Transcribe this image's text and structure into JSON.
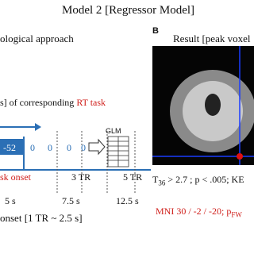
{
  "header": {
    "title": "Model 2 [Regressor Model]"
  },
  "panel_a": {
    "heading": "ological approach",
    "caption_prefix": "s] of corresponding",
    "caption_highlight": "RT task",
    "glm_label": "GLM",
    "cells": [
      "-52",
      "0",
      "0",
      "0",
      "0"
    ],
    "timeline_labels": [
      "sk onset",
      "3 TR",
      "5 TR"
    ],
    "time_labels": [
      "5 s",
      "7.5 s",
      "12.5 s"
    ],
    "axis_label": "onset [1 TR ~ 2.5 s]"
  },
  "panel_b": {
    "letter": "B",
    "heading": "Result [peak voxel",
    "stat_line": {
      "symbol": "T",
      "subscript": "36",
      "text": "> 2.7 ; p < .005; KE"
    },
    "mni_line": {
      "text": "MNI 30 / -2 / -20; p",
      "subscript": "FW"
    }
  }
}
